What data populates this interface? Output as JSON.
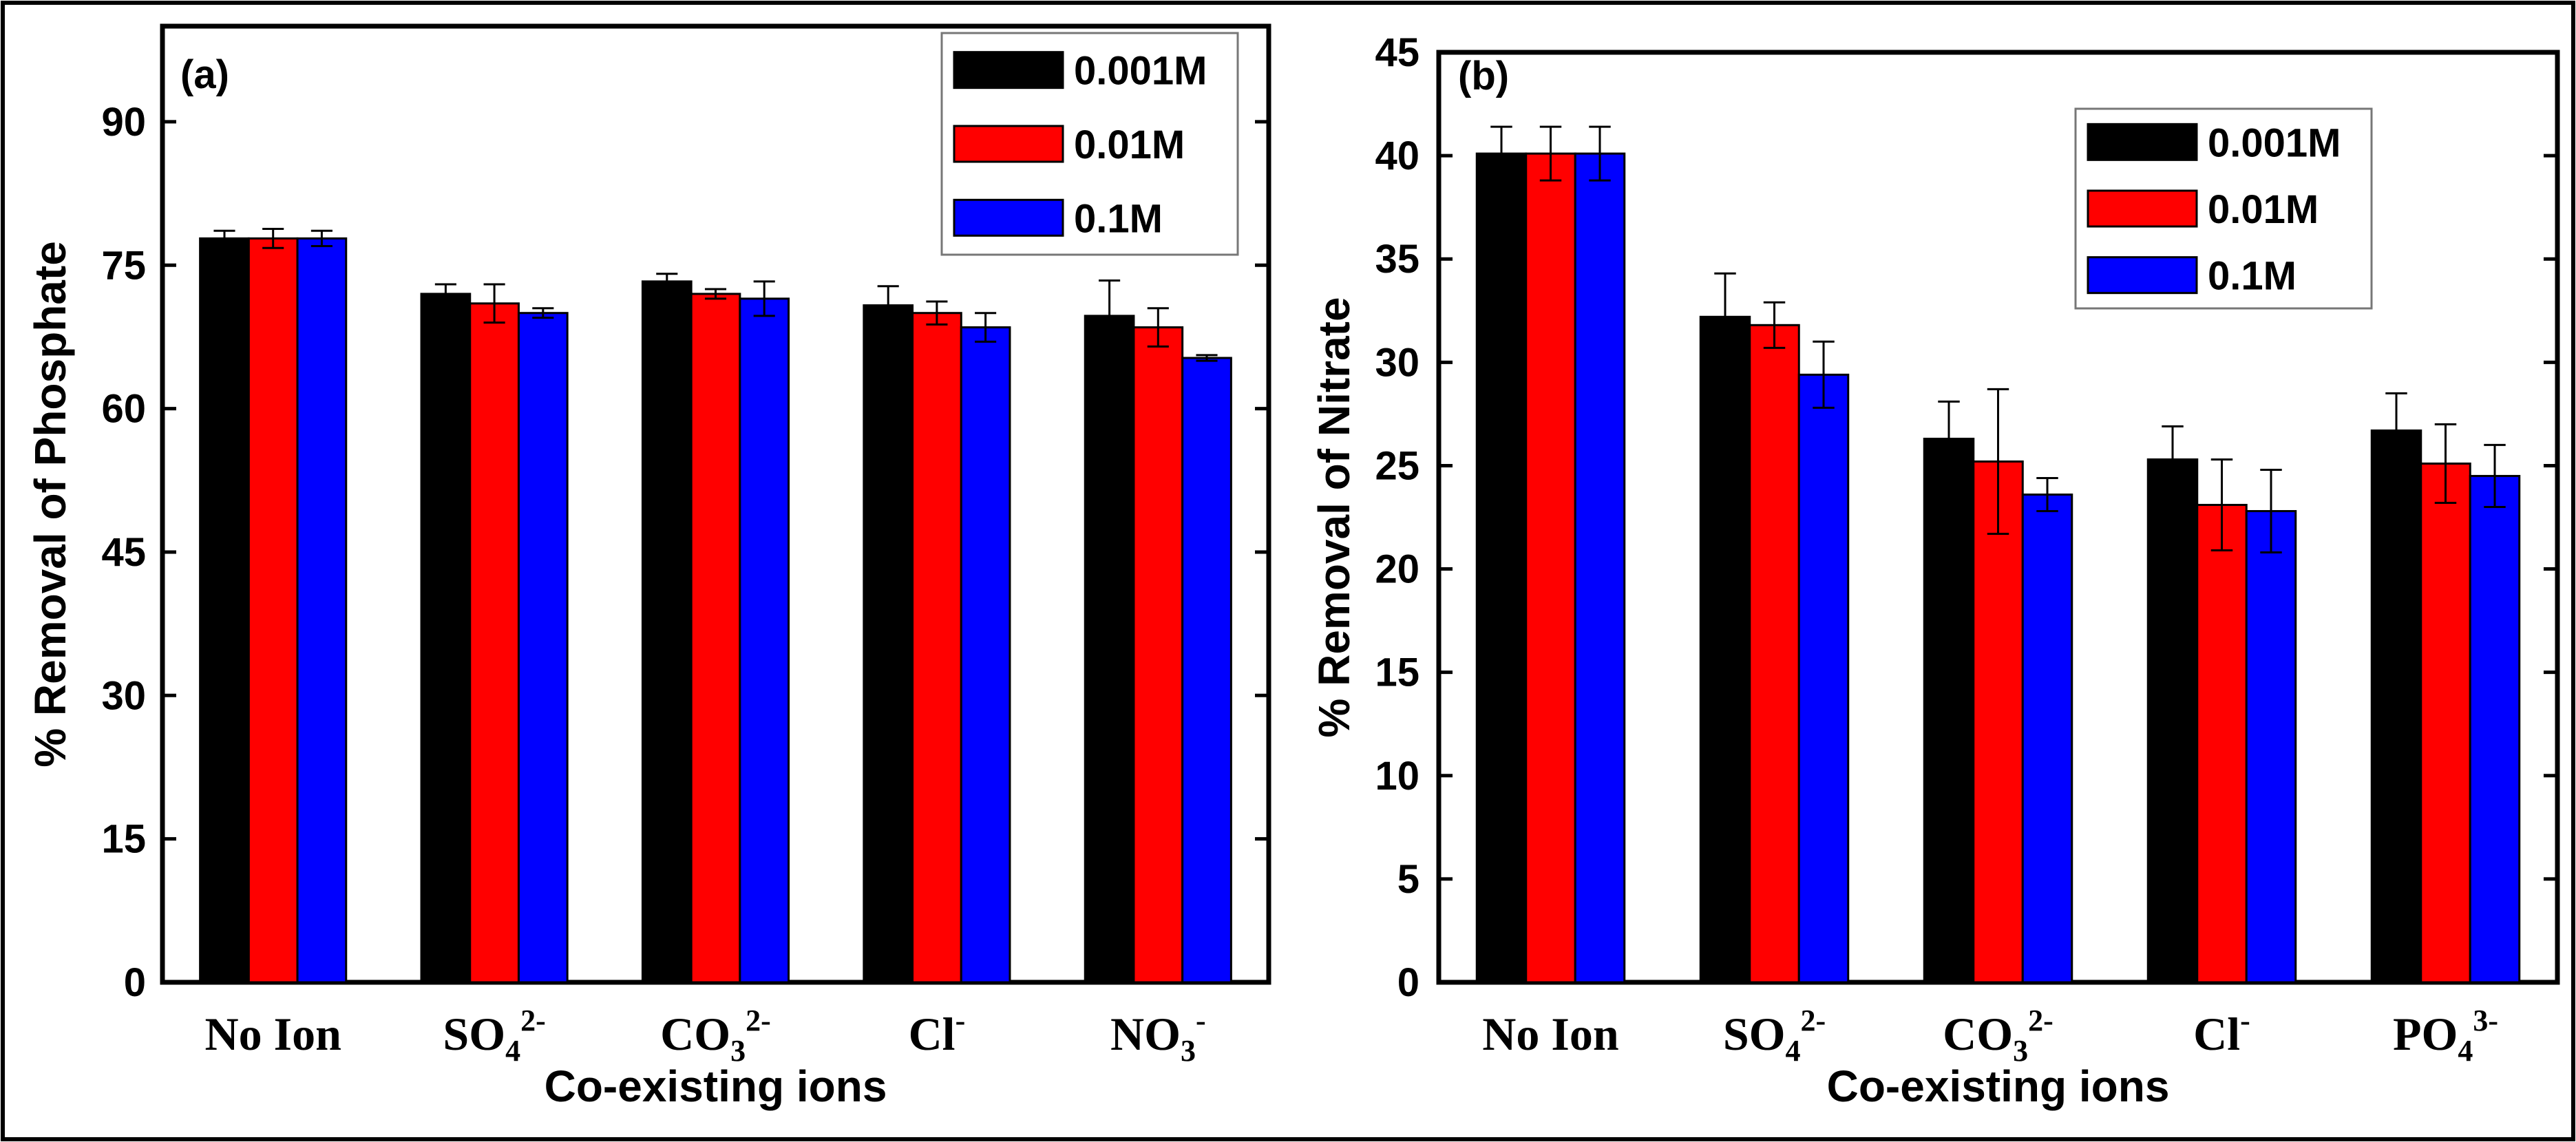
{
  "colors": {
    "s0": "#000000",
    "s1": "#ff0000",
    "s2": "#0000ff",
    "axis": "#000000",
    "frame": "#000000"
  },
  "chart_data": [
    {
      "type": "bar",
      "panel_label": "(a)",
      "title": "",
      "xlabel": "Co-existing ions",
      "ylabel": "% Removal of Phosphate",
      "ylim": [
        0,
        100
      ],
      "yticks": [
        0,
        15,
        30,
        45,
        60,
        75,
        90
      ],
      "categories": [
        {
          "base": "No Ion",
          "sub": "",
          "sup": ""
        },
        {
          "base": "SO",
          "sub": "4",
          "sup": "2-"
        },
        {
          "base": "CO",
          "sub": "3",
          "sup": "2-"
        },
        {
          "base": "Cl",
          "sub": "",
          "sup": "-"
        },
        {
          "base": "NO",
          "sub": "3",
          "sup": "-"
        }
      ],
      "series": [
        {
          "name": "0.001M",
          "values": [
            77.8,
            72.0,
            73.3,
            70.8,
            69.7
          ],
          "errors": [
            0.8,
            1.0,
            0.8,
            2.0,
            3.7
          ]
        },
        {
          "name": "0.01M",
          "values": [
            77.8,
            71.0,
            72.0,
            70.0,
            68.5
          ],
          "errors": [
            1.0,
            2.0,
            0.5,
            1.2,
            2.0
          ]
        },
        {
          "name": "0.1M",
          "values": [
            77.8,
            70.0,
            71.5,
            68.5,
            65.3
          ],
          "errors": [
            0.8,
            0.5,
            1.8,
            1.5,
            0.3
          ]
        }
      ],
      "legend_location": "top-right"
    },
    {
      "type": "bar",
      "panel_label": "(b)",
      "title": "",
      "xlabel": "Co-existing ions",
      "ylabel": "% Removal of Nitrate",
      "ylim": [
        0,
        45
      ],
      "yticks": [
        0,
        5,
        10,
        15,
        20,
        25,
        30,
        35,
        40,
        45
      ],
      "categories": [
        {
          "base": "No Ion",
          "sub": "",
          "sup": ""
        },
        {
          "base": "SO",
          "sub": "4",
          "sup": "2-"
        },
        {
          "base": "CO",
          "sub": "3",
          "sup": "2-"
        },
        {
          "base": "Cl",
          "sub": "",
          "sup": "-"
        },
        {
          "base": "PO",
          "sub": "4",
          "sup": "3-"
        }
      ],
      "series": [
        {
          "name": "0.001M",
          "values": [
            40.1,
            32.2,
            26.3,
            25.3,
            26.7
          ],
          "errors": [
            1.3,
            2.1,
            1.8,
            1.6,
            1.8
          ]
        },
        {
          "name": "0.01M",
          "values": [
            40.1,
            31.8,
            25.2,
            23.1,
            25.1
          ],
          "errors": [
            1.3,
            1.1,
            3.5,
            2.2,
            1.9
          ]
        },
        {
          "name": "0.1M",
          "values": [
            40.1,
            29.4,
            23.6,
            22.8,
            24.5
          ],
          "errors": [
            1.3,
            1.6,
            0.8,
            2.0,
            1.5
          ]
        }
      ],
      "legend_location": "top-right"
    }
  ]
}
